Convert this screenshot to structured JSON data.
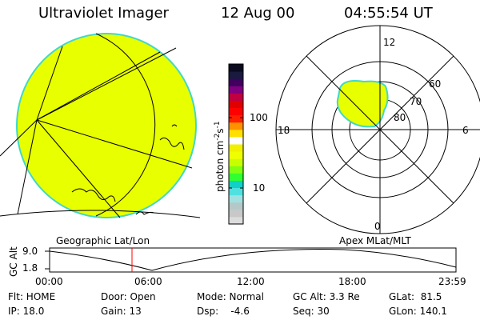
{
  "header": {
    "instrument": "Ultraviolet Imager",
    "date": "12 Aug 00",
    "time": "04:55:54 UT"
  },
  "colorbar": {
    "unit_prefix": "photon cm",
    "unit_exp1": "-2",
    "unit_mid": "s",
    "unit_exp2": "-1",
    "tick_100": "100",
    "tick_10": "10",
    "colors": [
      "#dcdcdc",
      "#c8c8c8",
      "#b4c8c8",
      "#a0e0e0",
      "#50e0e0",
      "#10d0c8",
      "#30ff30",
      "#80ff10",
      "#c8ff00",
      "#f0ff00",
      "#f0f000",
      "#ffffff",
      "#ffe000",
      "#ff9000",
      "#ff2000",
      "#ff0000",
      "#e00000",
      "#c00040",
      "#800080",
      "#400060",
      "#1a1a40",
      "#0a0a20"
    ]
  },
  "panels": {
    "left_label": "Geographic Lat/Lon",
    "right_label": "Apex MLat/MLT"
  },
  "polar": {
    "mlt_12": "12",
    "mlt_18": "18",
    "mlt_6": "6",
    "mlt_0": "0",
    "lat_60": "60",
    "lat_70": "70",
    "lat_80": "80"
  },
  "altplot": {
    "axis_label": "GC Alt",
    "y_top": "9.0",
    "y_bottom": "1.8",
    "x_ticks": [
      "00:00",
      "06:00",
      "12:00",
      "18:00",
      "23:59"
    ],
    "marker_color": "#ff0000"
  },
  "info": {
    "flt": "Flt: HOME",
    "ip": "IP: 18.0",
    "door": "Door: Open",
    "gain": "Gain: 13",
    "mode": "Mode: Normal",
    "dsp": "Dsp:    -4.6",
    "gcalt": "GC Alt: 3.3 Re",
    "seq": "Seq: 30",
    "glat": "GLat:  81.5",
    "glon": "GLon: 140.1"
  }
}
